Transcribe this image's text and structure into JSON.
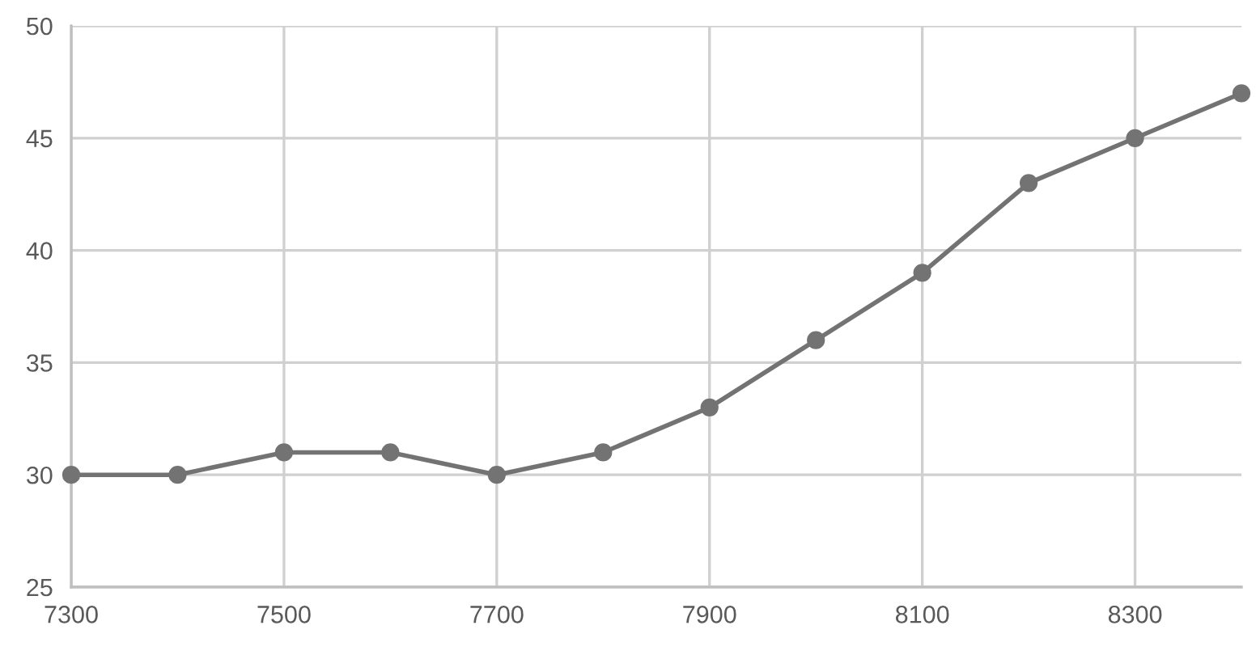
{
  "chart_data": {
    "type": "line",
    "x": [
      7300,
      7400,
      7500,
      7600,
      7700,
      7800,
      7900,
      8000,
      8100,
      8200,
      8300,
      8400
    ],
    "series": [
      {
        "color": "#737373",
        "values": [
          30,
          30,
          31,
          31,
          30,
          31,
          33,
          36,
          39,
          43,
          45,
          47
        ]
      }
    ],
    "xlim": [
      7300,
      8400
    ],
    "xticks": [
      7300,
      7500,
      7700,
      7900,
      8100,
      8300
    ],
    "ylim": [
      25,
      50
    ],
    "yticks": [
      25,
      30,
      35,
      40,
      45,
      50
    ],
    "grid": true,
    "marker": "circle",
    "line_style": "solid"
  }
}
